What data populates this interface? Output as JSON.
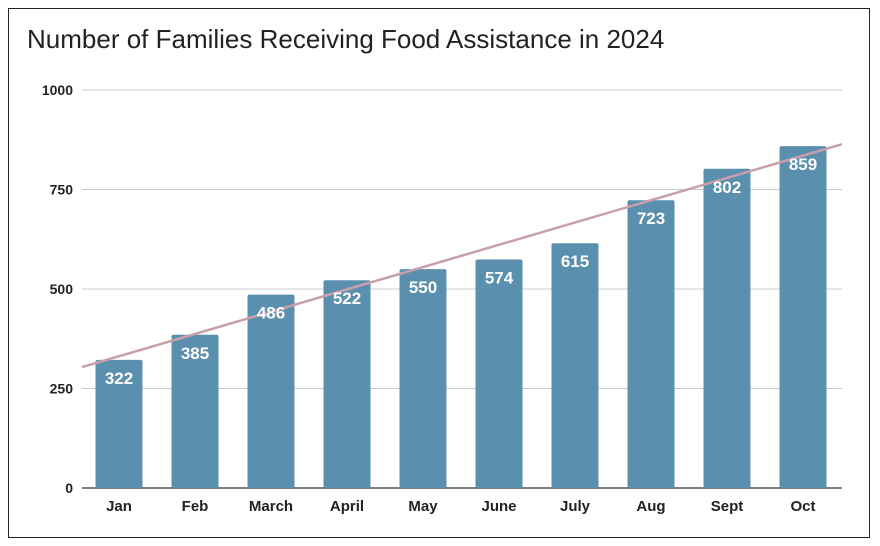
{
  "chart_data": {
    "type": "bar",
    "title": "Number of Families Receiving Food Assistance in 2024",
    "xlabel": "",
    "ylabel": "",
    "categories": [
      "Jan",
      "Feb",
      "March",
      "April",
      "May",
      "June",
      "July",
      "Aug",
      "Sept",
      "Oct"
    ],
    "values": [
      322,
      385,
      486,
      522,
      550,
      574,
      615,
      723,
      802,
      859
    ],
    "ylim": [
      0,
      1000
    ],
    "yticks": [
      0,
      250,
      500,
      750,
      1000
    ],
    "grid": true,
    "trendline": {
      "type": "linear",
      "color": "#c9a0aa"
    },
    "bar_color": "#5a8fae",
    "data_label_color": "#ffffff"
  }
}
